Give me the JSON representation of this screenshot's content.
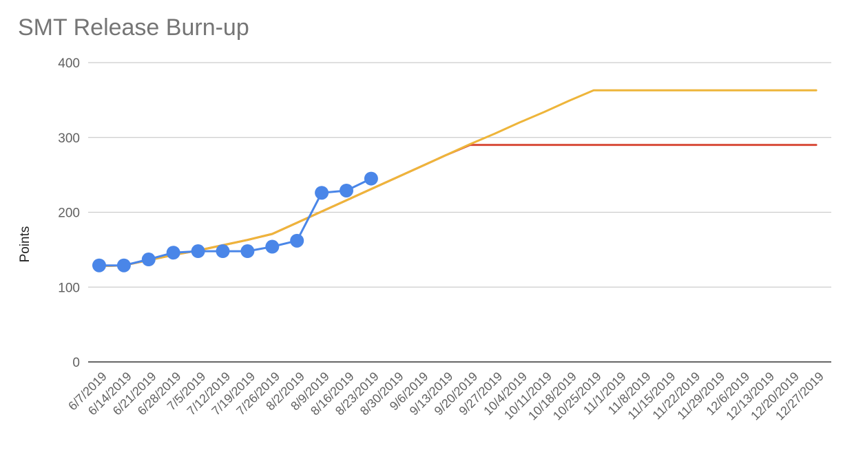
{
  "chart_data": {
    "type": "line",
    "title": "SMT Release Burn-up",
    "xlabel": "",
    "ylabel": "Points",
    "ylim": [
      0,
      400
    ],
    "yticks": [
      "0",
      "100",
      "200",
      "300",
      "400"
    ],
    "grid": true,
    "legend": "none",
    "categories": [
      "6/7/2019",
      "6/14/2019",
      "6/21/2019",
      "6/28/2019",
      "7/5/2019",
      "7/12/2019",
      "7/19/2019",
      "7/26/2019",
      "8/2/2019",
      "8/9/2019",
      "8/16/2019",
      "8/23/2019",
      "8/30/2019",
      "9/6/2019",
      "9/13/2019",
      "9/20/2019",
      "9/27/2019",
      "10/4/2019",
      "10/11/2019",
      "10/18/2019",
      "10/25/2019",
      "11/1/2019",
      "11/8/2019",
      "11/15/2019",
      "11/22/2019",
      "11/29/2019",
      "12/6/2019",
      "12/13/2019",
      "12/20/2019",
      "12/27/2019"
    ],
    "series": [
      {
        "color": "#D84A38",
        "markers": false,
        "values": [
          128,
          129,
          136,
          143,
          149,
          156,
          163,
          171,
          186,
          201,
          216,
          231,
          246,
          261,
          276,
          290,
          290,
          290,
          290,
          290,
          290,
          290,
          290,
          290,
          290,
          290,
          290,
          290,
          290,
          290
        ]
      },
      {
        "color": "#EEB53A",
        "markers": false,
        "values": [
          128,
          129,
          136,
          143,
          149,
          156,
          163,
          171,
          186,
          201,
          216,
          231,
          246,
          261,
          276,
          291,
          305,
          320,
          334,
          349,
          363,
          363,
          363,
          363,
          363,
          363,
          363,
          363,
          363,
          363
        ]
      },
      {
        "color": "#4A86E8",
        "markers": true,
        "values": [
          129,
          129,
          137,
          146,
          148,
          148,
          148,
          154,
          162,
          226,
          229,
          245,
          null,
          null,
          null,
          null,
          null,
          null,
          null,
          null,
          null,
          null,
          null,
          null,
          null,
          null,
          null,
          null,
          null,
          null
        ]
      }
    ]
  }
}
